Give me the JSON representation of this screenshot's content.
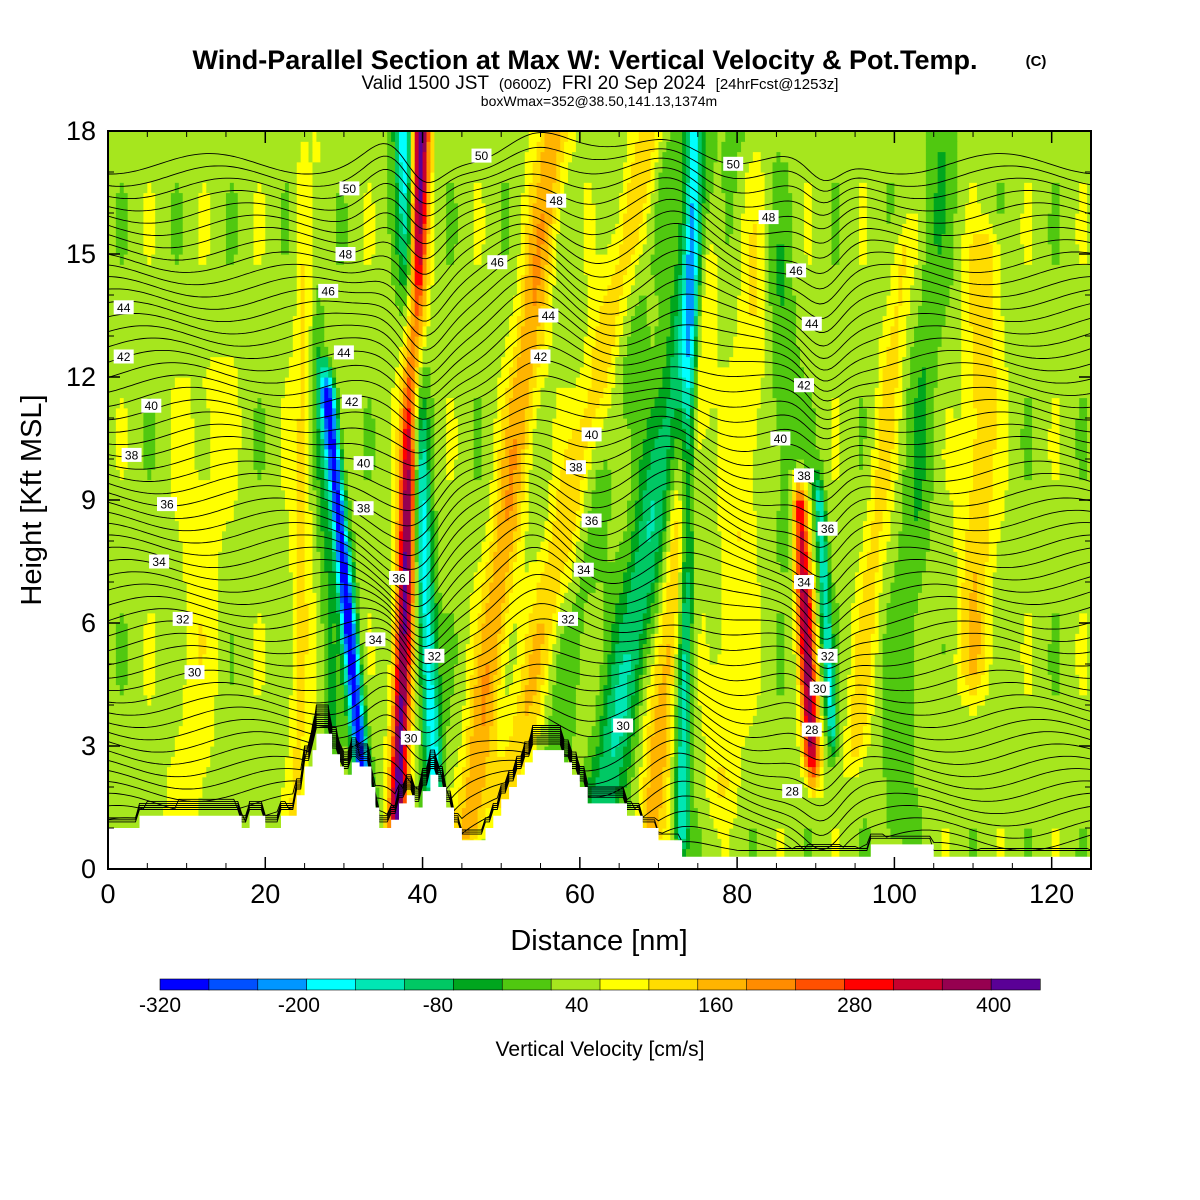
{
  "title": {
    "main": "Wind-Parallel Section at Max W: Vertical Velocity & Pot.Temp.",
    "copyright": "(C)",
    "valid_prefix": "Valid 1500 JST",
    "valid_utc": "(0600Z)",
    "valid_date": "FRI 20 Sep 2024",
    "forecast": "[24hrFcst@1253z]",
    "boxmax": "boxWmax=352@38.50,141.13,1374m"
  },
  "colors": {
    "bins": [
      "#0000ff",
      "#0050ff",
      "#0096ff",
      "#00ffff",
      "#00e6b4",
      "#00c864",
      "#00a61e",
      "#50c810",
      "#a6e61e",
      "#ffff00",
      "#ffdc00",
      "#ffb400",
      "#ff8c00",
      "#ff5000",
      "#ff0000",
      "#c8002d",
      "#960050",
      "#5a0096"
    ],
    "terrain": "#ffffff",
    "contour": "#000000"
  },
  "chart_data": {
    "type": "heatmap",
    "xlabel": "Distance [nm]",
    "ylabel": "Height [Kft MSL]",
    "xlim": [
      0,
      125
    ],
    "ylim": [
      0,
      18
    ],
    "x_ticks": [
      "0",
      "20",
      "40",
      "60",
      "80",
      "100",
      "120"
    ],
    "x_tick_values": [
      0,
      20,
      40,
      60,
      80,
      100,
      120
    ],
    "y_ticks": [
      "0",
      "3",
      "6",
      "9",
      "12",
      "15",
      "18"
    ],
    "y_tick_values": [
      0,
      3,
      6,
      9,
      12,
      15,
      18
    ],
    "colorbar": {
      "label": "Vertical Velocity [cm/s]",
      "min": -320,
      "max": 400,
      "step": 40,
      "tick_values": [
        -320,
        -200,
        -80,
        40,
        160,
        280,
        400
      ],
      "tick_labels": [
        "-320",
        "-200",
        "-80",
        "40",
        "160",
        "280",
        "400"
      ]
    },
    "terrain_profile": [
      [
        0,
        1
      ],
      [
        4,
        1
      ],
      [
        4,
        1.3
      ],
      [
        17,
        1.3
      ],
      [
        17,
        1
      ],
      [
        18,
        1
      ],
      [
        18,
        1.3
      ],
      [
        20,
        1.3
      ],
      [
        20,
        1
      ],
      [
        22,
        1
      ],
      [
        22,
        1.3
      ],
      [
        24,
        1.3
      ],
      [
        24,
        1.8
      ],
      [
        25,
        1.8
      ],
      [
        25,
        2.5
      ],
      [
        26,
        2.5
      ],
      [
        26,
        2.9
      ],
      [
        26.5,
        2.9
      ],
      [
        26.5,
        3.3
      ],
      [
        28.5,
        3.3
      ],
      [
        28.5,
        2.8
      ],
      [
        29.5,
        2.8
      ],
      [
        29.5,
        2.5
      ],
      [
        30,
        2.5
      ],
      [
        30,
        2.3
      ],
      [
        31,
        2.3
      ],
      [
        31,
        2.6
      ],
      [
        32,
        2.6
      ],
      [
        32,
        2.5
      ],
      [
        33.5,
        2.5
      ],
      [
        33.5,
        2
      ],
      [
        34,
        2
      ],
      [
        34,
        1.5
      ],
      [
        34.5,
        1.5
      ],
      [
        34.5,
        1
      ],
      [
        36,
        1
      ],
      [
        36,
        1.2
      ],
      [
        37,
        1.2
      ],
      [
        37,
        1.6
      ],
      [
        38,
        1.6
      ],
      [
        38,
        1.8
      ],
      [
        39,
        1.8
      ],
      [
        39,
        1.5
      ],
      [
        40,
        1.5
      ],
      [
        40,
        1.9
      ],
      [
        41,
        1.9
      ],
      [
        41,
        2.3
      ],
      [
        42,
        2.3
      ],
      [
        42,
        2
      ],
      [
        43,
        2
      ],
      [
        43,
        1.5
      ],
      [
        44,
        1.5
      ],
      [
        44,
        1
      ],
      [
        45,
        1
      ],
      [
        45,
        0.7
      ],
      [
        48,
        0.7
      ],
      [
        48,
        1
      ],
      [
        49,
        1
      ],
      [
        49,
        1.3
      ],
      [
        50,
        1.3
      ],
      [
        50,
        1.7
      ],
      [
        51,
        1.7
      ],
      [
        51,
        2
      ],
      [
        52,
        2
      ],
      [
        52,
        2.3
      ],
      [
        53,
        2.3
      ],
      [
        53,
        2.6
      ],
      [
        54,
        2.6
      ],
      [
        54,
        2.9
      ],
      [
        58,
        2.9
      ],
      [
        58,
        2.6
      ],
      [
        59,
        2.6
      ],
      [
        59,
        2.3
      ],
      [
        60,
        2.3
      ],
      [
        60,
        2
      ],
      [
        61,
        2
      ],
      [
        61,
        1.6
      ],
      [
        63,
        1.6
      ],
      [
        63,
        1.6
      ],
      [
        66,
        1.6
      ],
      [
        66,
        1.3
      ],
      [
        68,
        1.3
      ],
      [
        68,
        1
      ],
      [
        70,
        1
      ],
      [
        70,
        0.7
      ],
      [
        73,
        0.7
      ],
      [
        73,
        0.3
      ],
      [
        82,
        0.3
      ],
      [
        82,
        0.3
      ],
      [
        97,
        0.3
      ],
      [
        97,
        0.6
      ],
      [
        105,
        0.6
      ],
      [
        105,
        0.3
      ],
      [
        125,
        0.3
      ]
    ],
    "w_features": [
      {
        "x": 32.8,
        "y0": 1.3,
        "y1": 11.5,
        "drift": -1.6,
        "sigma": 1.0,
        "amp": -330
      },
      {
        "x": 36.8,
        "y0": 1.2,
        "y1": 18,
        "drift": 1.0,
        "sigma": 1.15,
        "amp": 360
      },
      {
        "x": 41.5,
        "y0": 2,
        "y1": 18,
        "drift": -1.3,
        "sigma": 1.2,
        "amp": -210
      },
      {
        "x": 46.0,
        "y0": 1,
        "y1": 18,
        "drift": 3.6,
        "sigma": 2.0,
        "amp": 130
      },
      {
        "x": 51.0,
        "y0": 2,
        "y1": 18,
        "drift": 6.0,
        "sigma": 2.2,
        "amp": 90
      },
      {
        "x": 56.5,
        "y0": 2.5,
        "y1": 18,
        "drift": 5.0,
        "sigma": 2.2,
        "amp": -40
      },
      {
        "x": 63.0,
        "y0": 1.5,
        "y1": 18,
        "drift": 5.0,
        "sigma": 2.5,
        "amp": -140
      },
      {
        "x": 69.0,
        "y0": 1.0,
        "y1": 18,
        "drift": 3.0,
        "sigma": 1.8,
        "amp": 130
      },
      {
        "x": 73.0,
        "y0": 1.0,
        "y1": 18,
        "drift": 0.5,
        "sigma": 1.0,
        "amp": -180
      },
      {
        "x": 78.0,
        "y0": 2.0,
        "y1": 18,
        "drift": 2.0,
        "sigma": 2.2,
        "amp": 60
      },
      {
        "x": 89.5,
        "y0": 2.8,
        "y1": 8.8,
        "drift": -0.5,
        "sigma": 1.0,
        "amp": 310
      },
      {
        "x": 92.0,
        "y0": 3.5,
        "y1": 9,
        "drift": -0.5,
        "sigma": 0.7,
        "amp": -170
      },
      {
        "x": 87.0,
        "y0": 8,
        "y1": 18,
        "drift": -1.0,
        "sigma": 2.0,
        "amp": -60
      },
      {
        "x": 95.0,
        "y0": 3,
        "y1": 15,
        "drift": 2.0,
        "sigma": 1.5,
        "amp": 70
      },
      {
        "x": 100.0,
        "y0": 1,
        "y1": 18,
        "drift": 2.0,
        "sigma": 2.0,
        "amp": -50
      },
      {
        "x": 110.0,
        "y0": 5,
        "y1": 15,
        "drift": 0.5,
        "sigma": 2.2,
        "amp": 90
      },
      {
        "x": 24.0,
        "y0": 1.5,
        "y1": 18,
        "drift": 0.5,
        "sigma": 1.3,
        "amp": 70
      },
      {
        "x": 28.5,
        "y0": 3.5,
        "y1": 18,
        "drift": -1.0,
        "sigma": 1.0,
        "amp": -60
      },
      {
        "x": 10.0,
        "y0": 1,
        "y1": 12,
        "drift": 1.0,
        "sigma": 3.0,
        "amp": 40
      }
    ],
    "contour_labels": [
      {
        "text": "50",
        "x": 30.7,
        "y": 16.6
      },
      {
        "text": "48",
        "x": 30.2,
        "y": 15.0
      },
      {
        "text": "46",
        "x": 28.0,
        "y": 14.1
      },
      {
        "text": "44",
        "x": 30.0,
        "y": 12.6
      },
      {
        "text": "42",
        "x": 31.0,
        "y": 11.4
      },
      {
        "text": "40",
        "x": 32.5,
        "y": 9.9
      },
      {
        "text": "38",
        "x": 32.5,
        "y": 8.8
      },
      {
        "text": "36",
        "x": 37.0,
        "y": 7.1
      },
      {
        "text": "34",
        "x": 34.0,
        "y": 5.6
      },
      {
        "text": "32",
        "x": 41.5,
        "y": 5.2
      },
      {
        "text": "30",
        "x": 38.5,
        "y": 3.2
      },
      {
        "text": "50",
        "x": 47.5,
        "y": 17.4
      },
      {
        "text": "48",
        "x": 57.0,
        "y": 16.3
      },
      {
        "text": "46",
        "x": 49.5,
        "y": 14.8
      },
      {
        "text": "44",
        "x": 56.0,
        "y": 13.5
      },
      {
        "text": "42",
        "x": 55.0,
        "y": 12.5
      },
      {
        "text": "40",
        "x": 61.5,
        "y": 10.6
      },
      {
        "text": "38",
        "x": 59.5,
        "y": 9.8
      },
      {
        "text": "36",
        "x": 61.5,
        "y": 8.5
      },
      {
        "text": "34",
        "x": 60.5,
        "y": 7.3
      },
      {
        "text": "32",
        "x": 58.5,
        "y": 6.1
      },
      {
        "text": "30",
        "x": 65.5,
        "y": 3.5
      },
      {
        "text": "50",
        "x": 79.5,
        "y": 17.2
      },
      {
        "text": "48",
        "x": 84.0,
        "y": 15.9
      },
      {
        "text": "46",
        "x": 87.5,
        "y": 14.6
      },
      {
        "text": "44",
        "x": 89.5,
        "y": 13.3
      },
      {
        "text": "42",
        "x": 88.5,
        "y": 11.8
      },
      {
        "text": "40",
        "x": 85.5,
        "y": 10.5
      },
      {
        "text": "38",
        "x": 88.5,
        "y": 9.6
      },
      {
        "text": "36",
        "x": 91.5,
        "y": 8.3
      },
      {
        "text": "34",
        "x": 88.5,
        "y": 7.0
      },
      {
        "text": "32",
        "x": 91.5,
        "y": 5.2
      },
      {
        "text": "30",
        "x": 90.5,
        "y": 4.4
      },
      {
        "text": "28",
        "x": 89.5,
        "y": 3.4
      },
      {
        "text": "28",
        "x": 87.0,
        "y": 1.9
      },
      {
        "text": "44",
        "x": 2.0,
        "y": 13.7
      },
      {
        "text": "42",
        "x": 2.0,
        "y": 12.5
      },
      {
        "text": "40",
        "x": 5.5,
        "y": 11.3
      },
      {
        "text": "38",
        "x": 3.0,
        "y": 10.1
      },
      {
        "text": "36",
        "x": 7.5,
        "y": 8.9
      },
      {
        "text": "34",
        "x": 6.5,
        "y": 7.5
      },
      {
        "text": "32",
        "x": 9.5,
        "y": 6.1
      },
      {
        "text": "30",
        "x": 11.0,
        "y": 4.8
      }
    ]
  }
}
